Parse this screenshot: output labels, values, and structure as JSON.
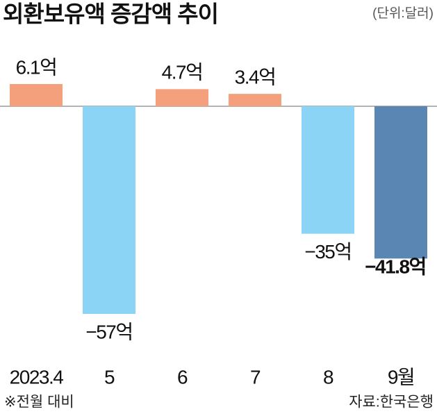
{
  "chart_data": {
    "type": "bar",
    "title": "외환보유액 증감액 추이",
    "unit": "(단위:달러)",
    "categories": [
      "2023.4",
      "5",
      "6",
      "7",
      "8",
      "9월"
    ],
    "values": [
      6.1,
      -57,
      4.7,
      3.4,
      -35,
      -41.8
    ],
    "value_labels": [
      "6.1억",
      "−57억",
      "4.7억",
      "3.4억",
      "−35억",
      "−41.8억"
    ],
    "colors": [
      "#f4a07c",
      "#8bd4f5",
      "#f4a07c",
      "#f4a07c",
      "#8bd4f5",
      "#5a86b3"
    ],
    "note": "※전월 대비",
    "source": "자료:한국은행"
  }
}
